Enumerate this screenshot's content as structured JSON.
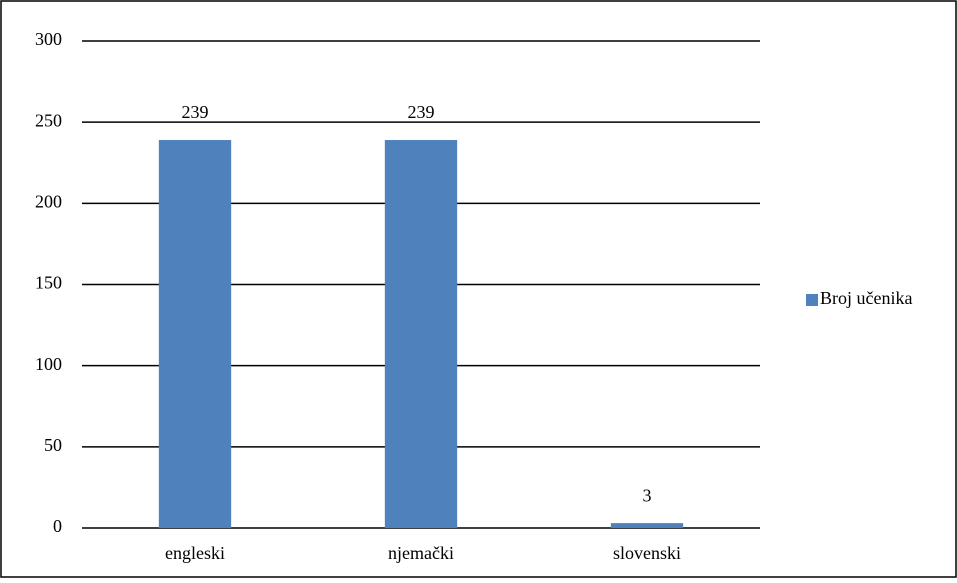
{
  "chart_data": {
    "type": "bar",
    "categories": [
      "engleski",
      "njemački",
      "slovenski"
    ],
    "series": [
      {
        "name": "Broj učenika",
        "color": "#4f81bd",
        "values": [
          239,
          239,
          3
        ]
      }
    ],
    "ylim": [
      0,
      300
    ],
    "yticks": [
      0,
      50,
      100,
      150,
      200,
      250,
      300
    ],
    "grid": true,
    "legend": "right"
  }
}
